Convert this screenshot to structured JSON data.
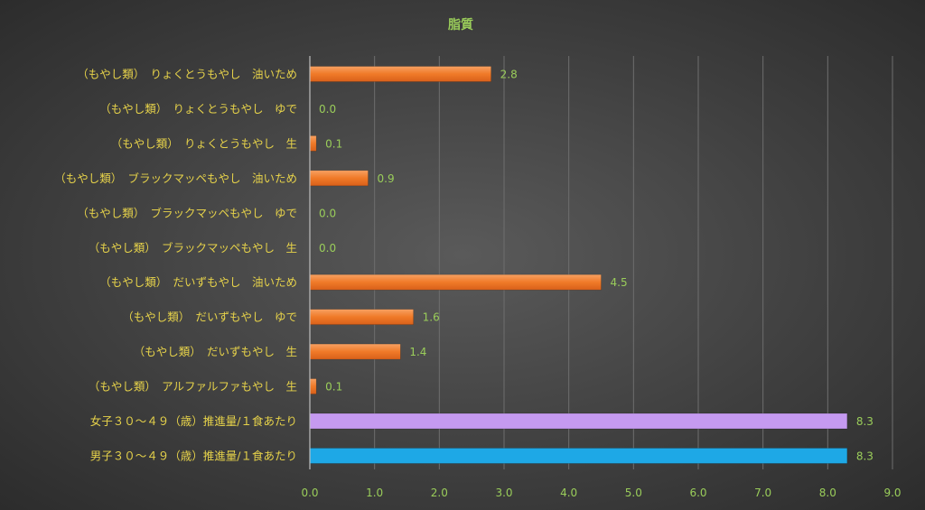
{
  "chart_data": {
    "type": "bar",
    "orientation": "horizontal",
    "title": "脂質",
    "categories": [
      "（もやし類）　りょくとうもやし　油いため",
      "（もやし類）　りょくとうもやし　ゆで",
      "（もやし類）　りょくとうもやし　生",
      "（もやし類）　ブラックマッペもやし　油いため",
      "（もやし類）　ブラックマッペもやし　ゆで",
      "（もやし類）　ブラックマッペもやし　生",
      "（もやし類）　だいずもやし　油いため",
      "（もやし類）　だいずもやし　ゆで",
      "（もやし類）　だいずもやし　生",
      "（もやし類）　アルファルファもやし　生",
      "女子３０～４９（歳）推進量/１食あたり",
      "男子３０～４９（歳）推進量/１食あたり"
    ],
    "values": [
      2.8,
      0.0,
      0.1,
      0.9,
      0.0,
      0.0,
      4.5,
      1.6,
      1.4,
      0.1,
      8.3,
      8.3
    ],
    "data_labels": [
      "2.8",
      "0.0",
      "0.1",
      "0.9",
      "0.0",
      "0.0",
      "4.5",
      "1.6",
      "1.4",
      "0.1",
      "8.3",
      "8.3"
    ],
    "bar_colors": [
      "#f07a28",
      "#f07a28",
      "#f07a28",
      "#f07a28",
      "#f07a28",
      "#f07a28",
      "#f07a28",
      "#f07a28",
      "#f07a28",
      "#f07a28",
      "#c59af0",
      "#1ea8e6"
    ],
    "xlim": [
      0,
      9
    ],
    "x_ticks": [
      "0.0",
      "1.0",
      "2.0",
      "3.0",
      "4.0",
      "5.0",
      "6.0",
      "7.0",
      "8.0",
      "9.0"
    ],
    "xlabel": "",
    "ylabel": "",
    "grid": true,
    "legend": "none"
  }
}
